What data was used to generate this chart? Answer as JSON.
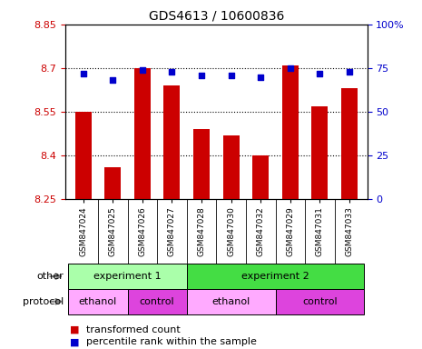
{
  "title": "GDS4613 / 10600836",
  "samples": [
    "GSM847024",
    "GSM847025",
    "GSM847026",
    "GSM847027",
    "GSM847028",
    "GSM847030",
    "GSM847032",
    "GSM847029",
    "GSM847031",
    "GSM847033"
  ],
  "bar_values": [
    8.55,
    8.36,
    8.7,
    8.64,
    8.49,
    8.47,
    8.4,
    8.71,
    8.57,
    8.63
  ],
  "percentile_values": [
    72,
    68,
    74,
    73,
    71,
    71,
    70,
    75,
    72,
    73
  ],
  "bar_bottom": 8.25,
  "ylim": [
    8.25,
    8.85
  ],
  "ylim_right": [
    0,
    100
  ],
  "yticks_left": [
    8.25,
    8.4,
    8.55,
    8.7,
    8.85
  ],
  "yticks_right": [
    0,
    25,
    50,
    75,
    100
  ],
  "hgrid_vals": [
    8.4,
    8.55,
    8.7
  ],
  "bar_color": "#cc0000",
  "percentile_color": "#0000cc",
  "ylabel_left_color": "#cc0000",
  "ylabel_right_color": "#0000cc",
  "xtick_bg_color": "#cccccc",
  "other_row": {
    "label": "other",
    "groups": [
      {
        "label": "experiment 1",
        "start": 0,
        "end": 4,
        "color": "#aaffaa"
      },
      {
        "label": "experiment 2",
        "start": 4,
        "end": 10,
        "color": "#44dd44"
      }
    ]
  },
  "protocol_row": {
    "label": "protocol",
    "groups": [
      {
        "label": "ethanol",
        "start": 0,
        "end": 2,
        "color": "#ffaaff"
      },
      {
        "label": "control",
        "start": 2,
        "end": 4,
        "color": "#dd44dd"
      },
      {
        "label": "ethanol",
        "start": 4,
        "end": 7,
        "color": "#ffaaff"
      },
      {
        "label": "control",
        "start": 7,
        "end": 10,
        "color": "#dd44dd"
      }
    ]
  },
  "legend_items": [
    {
      "label": "transformed count",
      "color": "#cc0000"
    },
    {
      "label": "percentile rank within the sample",
      "color": "#0000cc"
    }
  ],
  "bar_width": 0.55
}
